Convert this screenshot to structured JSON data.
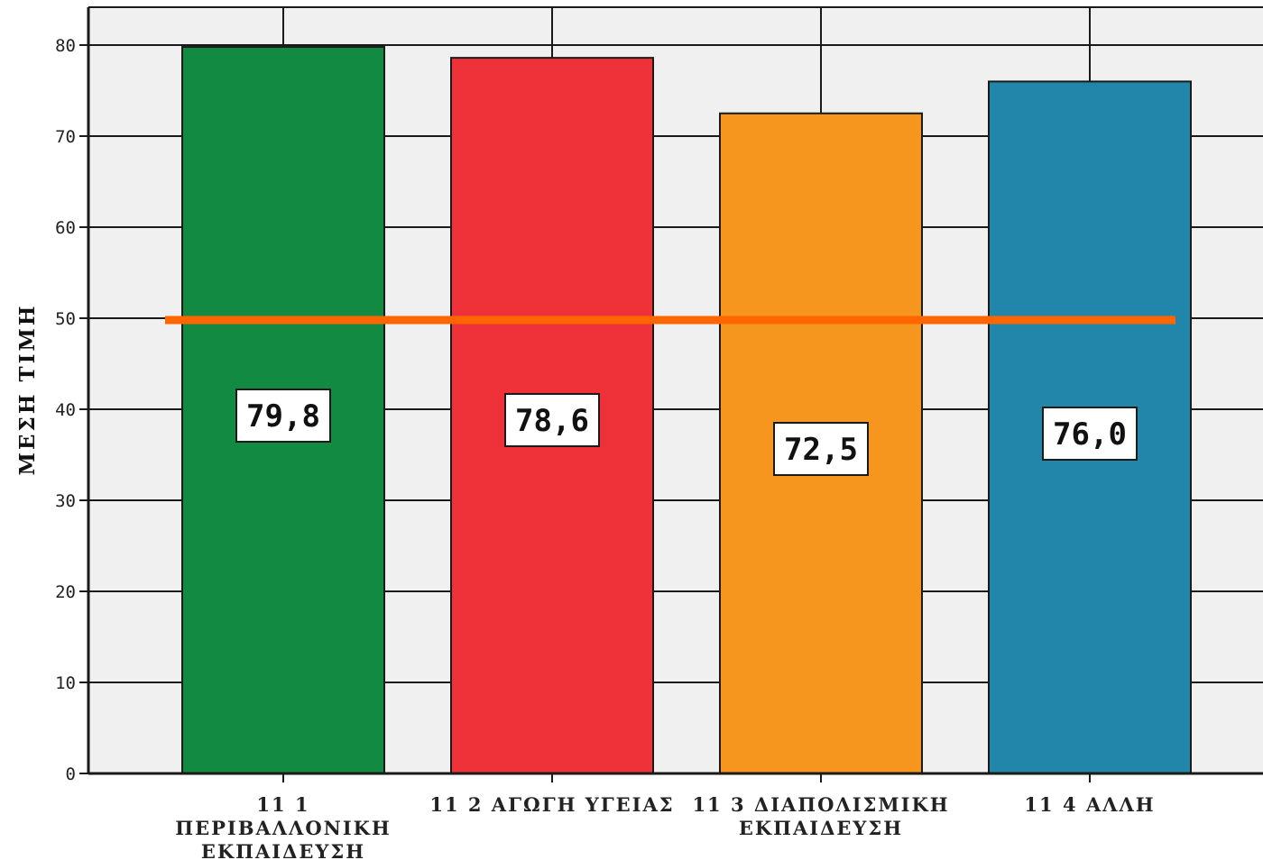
{
  "chart_data": {
    "type": "bar",
    "ylabel": "ΜΕΣΗ ΤΙΜΗ",
    "xlabel": "",
    "ylim": [
      0,
      80
    ],
    "yticks": [
      "0",
      "10",
      "20",
      "30",
      "40",
      "50",
      "60",
      "70",
      "80"
    ],
    "grid": true,
    "categories": [
      [
        "11 1",
        "ΠΕΡΙΒΑΛΛΟΝΙΚΗ",
        "ΕΚΠΑΙΔΕΥΣΗ"
      ],
      [
        "11 2 ΑΓΩΓΗ ΥΓΕΙΑΣ"
      ],
      [
        "11 3 ΔΙΑΠΟΛΙΣΜΙΚΗ",
        "ΕΚΠΑΙΔΕΥΣΗ"
      ],
      [
        "11 4 ΑΛΛΗ"
      ]
    ],
    "values": [
      79.8,
      78.6,
      72.5,
      76.0
    ],
    "value_labels": [
      "79,8",
      "78,6",
      "72,5",
      "76,0"
    ],
    "bar_colors": [
      "#138a42",
      "#ef3139",
      "#f7961e",
      "#2286ab"
    ],
    "reference_line": {
      "y": 49.8,
      "color": "#ff6600"
    },
    "plot_background": "#f0f0f0",
    "grid_color": "#1a1a1a"
  }
}
